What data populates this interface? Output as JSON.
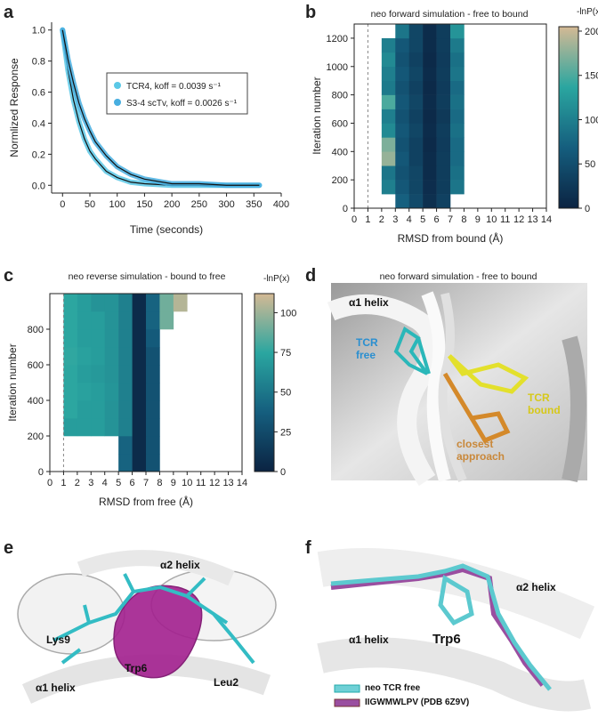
{
  "chart_data": [
    {
      "panel": "a",
      "type": "line",
      "x": [
        0,
        10,
        20,
        30,
        40,
        50,
        60,
        80,
        100,
        125,
        150,
        200,
        250,
        300,
        360
      ],
      "series": [
        {
          "name": "TCR4, koff = 0.0039 s⁻¹",
          "color": "#5bc8e6",
          "values": [
            1.0,
            0.74,
            0.55,
            0.41,
            0.3,
            0.22,
            0.17,
            0.09,
            0.05,
            0.02,
            0.01,
            0.0,
            0.0,
            0.0,
            0.0
          ]
        },
        {
          "name": "S3-4 scTv, koff = 0.0026 s⁻¹",
          "color": "#47aee0",
          "values": [
            1.0,
            0.81,
            0.66,
            0.53,
            0.43,
            0.35,
            0.28,
            0.19,
            0.12,
            0.07,
            0.04,
            0.01,
            0.01,
            0.0,
            0.0
          ]
        }
      ],
      "xlim": [
        -20,
        400
      ],
      "xticks": [
        0,
        50,
        100,
        150,
        200,
        250,
        300,
        350,
        400
      ],
      "ylim": [
        -0.05,
        1.05
      ],
      "yticks": [
        {
          "value": 0,
          "label": "0.0"
        },
        0.2,
        0.4,
        0.6,
        0.8,
        {
          "value": 1,
          "label": "1.0"
        }
      ],
      "xlabel": "Time (seconds)",
      "ylabel": "Normlized Response",
      "legend": "center"
    },
    {
      "panel": "b",
      "type": "heatmap",
      "title": "neo forward simulation - free to bound",
      "xlabel": "RMSD from bound (Å)",
      "ylabel": "Iteration number",
      "x_bins": [
        0,
        1,
        2,
        3,
        4,
        5,
        6,
        7,
        8,
        9,
        10,
        11,
        12,
        13,
        14
      ],
      "y_bins": [
        0,
        100,
        200,
        300,
        400,
        500,
        600,
        700,
        800,
        900,
        1000,
        1100,
        1200,
        1300
      ],
      "values": [
        [
          null,
          null,
          null,
          70,
          45,
          15,
          35,
          null,
          null,
          null,
          null,
          null,
          null,
          null
        ],
        [
          null,
          null,
          100,
          60,
          40,
          12,
          30,
          90,
          null,
          null,
          null,
          null,
          null,
          null
        ],
        [
          null,
          null,
          90,
          55,
          40,
          10,
          30,
          85,
          null,
          null,
          null,
          null,
          null,
          null
        ],
        [
          null,
          null,
          180,
          60,
          35,
          10,
          30,
          80,
          null,
          null,
          null,
          null,
          null,
          null
        ],
        [
          null,
          null,
          170,
          55,
          35,
          8,
          28,
          80,
          null,
          null,
          null,
          null,
          null,
          null
        ],
        [
          null,
          null,
          110,
          60,
          40,
          10,
          30,
          85,
          null,
          null,
          null,
          null,
          null,
          null
        ],
        [
          null,
          null,
          100,
          55,
          35,
          8,
          25,
          80,
          null,
          null,
          null,
          null,
          null,
          null
        ],
        [
          null,
          null,
          150,
          60,
          40,
          10,
          30,
          85,
          null,
          null,
          null,
          null,
          null,
          null
        ],
        [
          null,
          null,
          95,
          55,
          35,
          8,
          28,
          80,
          null,
          null,
          null,
          null,
          null,
          null
        ],
        [
          null,
          null,
          100,
          60,
          40,
          10,
          30,
          90,
          null,
          null,
          null,
          null,
          null,
          null
        ],
        [
          null,
          null,
          110,
          55,
          35,
          8,
          28,
          85,
          null,
          null,
          null,
          null,
          null,
          null
        ],
        [
          null,
          null,
          100,
          60,
          40,
          10,
          30,
          95,
          null,
          null,
          null,
          null,
          null,
          null
        ],
        [
          null,
          null,
          null,
          90,
          40,
          10,
          30,
          120,
          null,
          null,
          null,
          null,
          null,
          null
        ]
      ],
      "xlim": [
        0,
        14
      ],
      "xticks": [
        0,
        1,
        2,
        3,
        4,
        5,
        6,
        7,
        8,
        9,
        10,
        11,
        12,
        13,
        14
      ],
      "ylim": [
        0,
        1300
      ],
      "yticks": [
        0,
        200,
        400,
        600,
        800,
        1000,
        1200
      ],
      "colorbar_label": "-lnP(x)",
      "clim": [
        0,
        205
      ],
      "cticks": [
        0,
        50,
        100,
        150,
        200
      ],
      "colormap": [
        "#0b2342",
        "#155e7e",
        "#2aa6a0",
        "#d4b994"
      ],
      "vline": 1
    },
    {
      "panel": "c",
      "type": "heatmap",
      "title": "neo reverse simulation - bound to free",
      "xlabel": "RMSD from free (Å)",
      "ylabel": "Iteration number",
      "x_bins": [
        0,
        1,
        2,
        3,
        4,
        5,
        6,
        7,
        8,
        9,
        10,
        11,
        12,
        13,
        14
      ],
      "y_bins": [
        0,
        100,
        200,
        300,
        400,
        500,
        600,
        700,
        800,
        900,
        1000
      ],
      "values": [
        [
          null,
          null,
          null,
          null,
          null,
          40,
          5,
          30,
          null,
          null,
          null,
          null,
          null,
          null
        ],
        [
          null,
          null,
          null,
          null,
          null,
          40,
          5,
          30,
          null,
          null,
          null,
          null,
          null,
          null
        ],
        [
          null,
          70,
          70,
          70,
          65,
          55,
          5,
          30,
          null,
          null,
          null,
          null,
          null,
          null
        ],
        [
          null,
          75,
          70,
          70,
          65,
          55,
          5,
          30,
          null,
          null,
          null,
          null,
          null,
          null
        ],
        [
          null,
          75,
          72,
          70,
          66,
          55,
          5,
          30,
          null,
          null,
          null,
          null,
          null,
          null
        ],
        [
          null,
          75,
          70,
          68,
          65,
          55,
          5,
          30,
          null,
          null,
          null,
          null,
          null,
          null
        ],
        [
          null,
          76,
          72,
          70,
          65,
          55,
          5,
          30,
          null,
          null,
          null,
          null,
          null,
          null
        ],
        [
          null,
          75,
          70,
          70,
          65,
          55,
          5,
          35,
          null,
          null,
          null,
          null,
          null,
          null
        ],
        [
          null,
          75,
          70,
          70,
          65,
          55,
          5,
          40,
          90,
          null,
          null,
          null,
          null,
          null
        ],
        [
          null,
          75,
          70,
          65,
          65,
          55,
          5,
          40,
          90,
          105,
          null,
          null,
          null,
          null
        ]
      ],
      "xlim": [
        0,
        14
      ],
      "xticks": [
        0,
        1,
        2,
        3,
        4,
        5,
        6,
        7,
        8,
        9,
        10,
        11,
        12,
        13,
        14
      ],
      "ylim": [
        0,
        1000
      ],
      "yticks": [
        0,
        200,
        400,
        600,
        800
      ],
      "colorbar_label": "-lnP(x)",
      "clim": [
        0,
        112
      ],
      "cticks": [
        0,
        25,
        50,
        75,
        100
      ],
      "colormap": [
        "#0b2342",
        "#155e7e",
        "#2aa6a0",
        "#d4b994"
      ],
      "vline": 1
    }
  ],
  "figures": [
    {
      "panel": "d",
      "title": "neo forward simulation - free to bound",
      "labels": [
        "α1 helix",
        "TCR free",
        "TCR bound",
        "closest approach"
      ]
    },
    {
      "panel": "e",
      "labels": [
        "α2 helix",
        "Lys9",
        "Trp6",
        "Leu2",
        "α1 helix"
      ]
    },
    {
      "panel": "f",
      "labels": [
        "α2 helix",
        "α1 helix",
        "Trp6"
      ],
      "legend": [
        "neo TCR free",
        "IIGWMWLPV (PDB 6Z9V)"
      ]
    }
  ]
}
